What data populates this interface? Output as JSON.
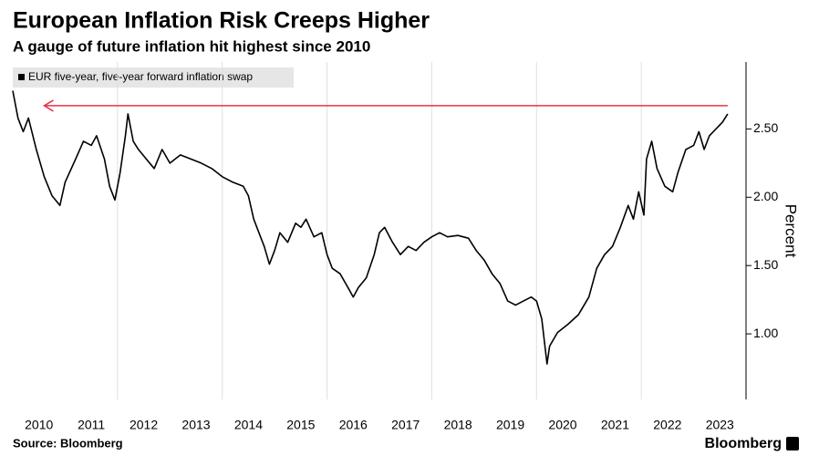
{
  "chart_data": {
    "type": "line",
    "title": "European Inflation Risk Creeps Higher",
    "subtitle": "A gauge of future inflation hit highest since 2010",
    "y_label": "Percent",
    "source": "Source: Bloomberg",
    "brand": "Bloomberg",
    "xlim": [
      2010,
      2024
    ],
    "ylim": [
      0.52,
      2.99
    ],
    "xticks": [
      {
        "value": 2010.5,
        "label": "2010"
      },
      {
        "value": 2011.5,
        "label": "2011"
      },
      {
        "value": 2012.5,
        "label": "2012"
      },
      {
        "value": 2013.5,
        "label": "2013"
      },
      {
        "value": 2014.5,
        "label": "2014"
      },
      {
        "value": 2015.5,
        "label": "2015"
      },
      {
        "value": 2016.5,
        "label": "2016"
      },
      {
        "value": 2017.5,
        "label": "2017"
      },
      {
        "value": 2018.5,
        "label": "2018"
      },
      {
        "value": 2019.5,
        "label": "2019"
      },
      {
        "value": 2020.5,
        "label": "2020"
      },
      {
        "value": 2021.5,
        "label": "2021"
      },
      {
        "value": 2022.5,
        "label": "2022"
      },
      {
        "value": 2023.5,
        "label": "2023"
      }
    ],
    "xgrid": [
      2012,
      2014,
      2016,
      2018,
      2020,
      2022
    ],
    "yticks": [
      {
        "value": 1,
        "label": "1.00"
      },
      {
        "value": 1.5,
        "label": "1.50"
      },
      {
        "value": 2,
        "label": "2.00"
      },
      {
        "value": 2.5,
        "label": "2.50"
      }
    ],
    "reference_line": {
      "value": 2.67,
      "x": [
        2010.6,
        2023.65
      ],
      "color": "#e8334a"
    },
    "series": [
      {
        "name": "EUR five-year, five-year forward inflation swap",
        "color": "#000000",
        "x": [
          2010.0,
          2010.1,
          2010.2,
          2010.3,
          2010.45,
          2010.6,
          2010.75,
          2010.9,
          2011.0,
          2011.2,
          2011.35,
          2011.5,
          2011.6,
          2011.75,
          2011.85,
          2011.95,
          2012.05,
          2012.15,
          2012.2,
          2012.3,
          2012.4,
          2012.55,
          2012.7,
          2012.85,
          2013.0,
          2013.2,
          2013.4,
          2013.6,
          2013.8,
          2014.0,
          2014.2,
          2014.4,
          2014.5,
          2014.6,
          2014.7,
          2014.8,
          2014.9,
          2015.0,
          2015.1,
          2015.25,
          2015.4,
          2015.5,
          2015.6,
          2015.75,
          2015.9,
          2016.0,
          2016.1,
          2016.25,
          2016.4,
          2016.5,
          2016.6,
          2016.75,
          2016.9,
          2017.0,
          2017.1,
          2017.25,
          2017.4,
          2017.55,
          2017.7,
          2017.85,
          2018.0,
          2018.15,
          2018.3,
          2018.5,
          2018.7,
          2018.85,
          2019.0,
          2019.15,
          2019.3,
          2019.45,
          2019.6,
          2019.75,
          2019.9,
          2020.0,
          2020.1,
          2020.2,
          2020.25,
          2020.4,
          2020.6,
          2020.8,
          2021.0,
          2021.15,
          2021.3,
          2021.45,
          2021.6,
          2021.75,
          2021.85,
          2021.95,
          2022.05,
          2022.1,
          2022.2,
          2022.3,
          2022.45,
          2022.6,
          2022.7,
          2022.85,
          2023.0,
          2023.1,
          2023.2,
          2023.3,
          2023.45,
          2023.55,
          2023.65
        ],
        "values": [
          2.78,
          2.58,
          2.48,
          2.58,
          2.35,
          2.15,
          2.01,
          1.94,
          2.11,
          2.28,
          2.41,
          2.38,
          2.45,
          2.28,
          2.08,
          1.98,
          2.18,
          2.45,
          2.61,
          2.41,
          2.35,
          2.28,
          2.21,
          2.35,
          2.25,
          2.31,
          2.28,
          2.25,
          2.21,
          2.15,
          2.11,
          2.08,
          2.01,
          1.84,
          1.74,
          1.64,
          1.51,
          1.61,
          1.74,
          1.67,
          1.81,
          1.78,
          1.84,
          1.71,
          1.74,
          1.58,
          1.48,
          1.44,
          1.34,
          1.27,
          1.34,
          1.41,
          1.58,
          1.74,
          1.78,
          1.67,
          1.58,
          1.64,
          1.61,
          1.67,
          1.71,
          1.74,
          1.71,
          1.72,
          1.7,
          1.61,
          1.54,
          1.44,
          1.37,
          1.24,
          1.21,
          1.24,
          1.27,
          1.24,
          1.11,
          0.78,
          0.91,
          1.01,
          1.07,
          1.14,
          1.27,
          1.48,
          1.58,
          1.64,
          1.78,
          1.94,
          1.84,
          2.04,
          1.87,
          2.28,
          2.41,
          2.21,
          2.08,
          2.04,
          2.18,
          2.35,
          2.38,
          2.48,
          2.35,
          2.45,
          2.51,
          2.55,
          2.61
        ]
      }
    ]
  }
}
